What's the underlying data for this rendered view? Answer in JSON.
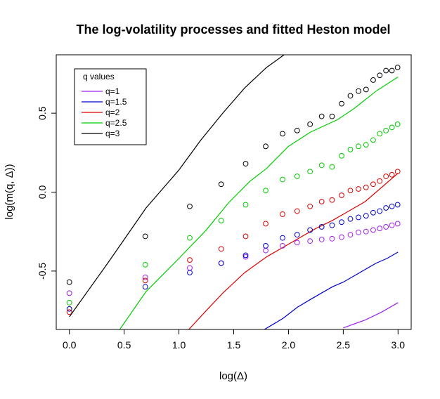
{
  "chart_data": {
    "type": "line",
    "title": "The log-volatility processes and fitted Heston model",
    "xlabel": "log(Δ)",
    "ylabel": "log(m(q, Δ))",
    "xlim": [
      -0.12,
      3.12
    ],
    "ylim": [
      -0.87,
      0.87
    ],
    "xticks": [
      0.0,
      0.5,
      1.0,
      1.5,
      2.0,
      2.5,
      3.0
    ],
    "xtick_labels": [
      "0.0",
      "0.5",
      "1.0",
      "1.5",
      "2.0",
      "2.5",
      "3.0"
    ],
    "yticks": [
      -0.5,
      0.0,
      0.5
    ],
    "ytick_labels": [
      "-0.5",
      "0.0",
      "0.5"
    ],
    "grid": false,
    "legend": {
      "title": "q values",
      "placement": "top-left"
    },
    "x_points": [
      0,
      0.693,
      1.099,
      1.386,
      1.609,
      1.792,
      1.946,
      2.079,
      2.197,
      2.303,
      2.398,
      2.485,
      2.565,
      2.639,
      2.708,
      2.773,
      2.833,
      2.89,
      2.944,
      2.996
    ],
    "series": [
      {
        "name": "q=1",
        "color": "#a020f0",
        "points": [
          -0.64,
          -0.54,
          -0.48,
          -0.45,
          -0.41,
          -0.37,
          -0.34,
          -0.32,
          -0.31,
          -0.3,
          -0.295,
          -0.285,
          -0.27,
          -0.255,
          -0.25,
          -0.24,
          -0.23,
          -0.22,
          -0.21,
          -0.2
        ],
        "fit_x": [
          2.5,
          2.7,
          2.85,
          3.0
        ],
        "fit_y": [
          -0.86,
          -0.81,
          -0.76,
          -0.7
        ]
      },
      {
        "name": "q=1.5",
        "color": "#0000cd",
        "points": [
          -0.74,
          -0.6,
          -0.51,
          -0.45,
          -0.4,
          -0.34,
          -0.29,
          -0.27,
          -0.24,
          -0.22,
          -0.21,
          -0.19,
          -0.17,
          -0.16,
          -0.15,
          -0.13,
          -0.12,
          -0.1,
          -0.09,
          -0.08
        ],
        "fit_x": [
          1.78,
          1.95,
          2.08,
          2.2,
          2.3,
          2.4,
          2.5,
          2.6,
          2.7,
          2.8,
          2.9,
          3.0
        ],
        "fit_y": [
          -0.87,
          -0.8,
          -0.73,
          -0.68,
          -0.64,
          -0.6,
          -0.57,
          -0.53,
          -0.49,
          -0.45,
          -0.42,
          -0.38
        ]
      },
      {
        "name": "q=2",
        "color": "#dd0000",
        "points": [
          -0.76,
          -0.56,
          -0.43,
          -0.36,
          -0.28,
          -0.2,
          -0.14,
          -0.12,
          -0.09,
          -0.06,
          -0.05,
          -0.02,
          0.01,
          0.02,
          0.03,
          0.05,
          0.07,
          0.1,
          0.11,
          0.13
        ],
        "fit_x": [
          1.09,
          1.25,
          1.4,
          1.6,
          1.8,
          1.95,
          2.1,
          2.25,
          2.4,
          2.55,
          2.7,
          2.85,
          3.0
        ],
        "fit_y": [
          -0.87,
          -0.75,
          -0.64,
          -0.51,
          -0.41,
          -0.35,
          -0.29,
          -0.23,
          -0.18,
          -0.12,
          -0.06,
          0.03,
          0.12
        ]
      },
      {
        "name": "q=2.5",
        "color": "#00cd00",
        "points": [
          -0.7,
          -0.46,
          -0.29,
          -0.18,
          -0.08,
          0.01,
          0.08,
          0.1,
          0.13,
          0.17,
          0.16,
          0.23,
          0.27,
          0.29,
          0.3,
          0.33,
          0.37,
          0.39,
          0.41,
          0.43
        ],
        "fit_x": [
          0.46,
          0.7,
          1.0,
          1.25,
          1.45,
          1.65,
          1.8,
          2.0,
          2.2,
          2.45,
          2.6,
          2.8,
          3.0
        ],
        "fit_y": [
          -0.87,
          -0.63,
          -0.42,
          -0.24,
          -0.07,
          0.07,
          0.15,
          0.29,
          0.38,
          0.46,
          0.53,
          0.64,
          0.73
        ]
      },
      {
        "name": "q=3",
        "color": "#000000",
        "points": [
          -0.57,
          -0.28,
          -0.09,
          0.05,
          0.18,
          0.29,
          0.37,
          0.39,
          0.43,
          0.48,
          0.48,
          0.56,
          0.61,
          0.64,
          0.65,
          0.71,
          0.74,
          0.77,
          0.77,
          0.79
        ],
        "fit_x": [
          0.0,
          0.35,
          0.7,
          1.0,
          1.2,
          1.4,
          1.6,
          1.8,
          1.96
        ],
        "fit_y": [
          -0.79,
          -0.45,
          -0.1,
          0.14,
          0.33,
          0.5,
          0.66,
          0.79,
          0.87
        ]
      }
    ]
  }
}
